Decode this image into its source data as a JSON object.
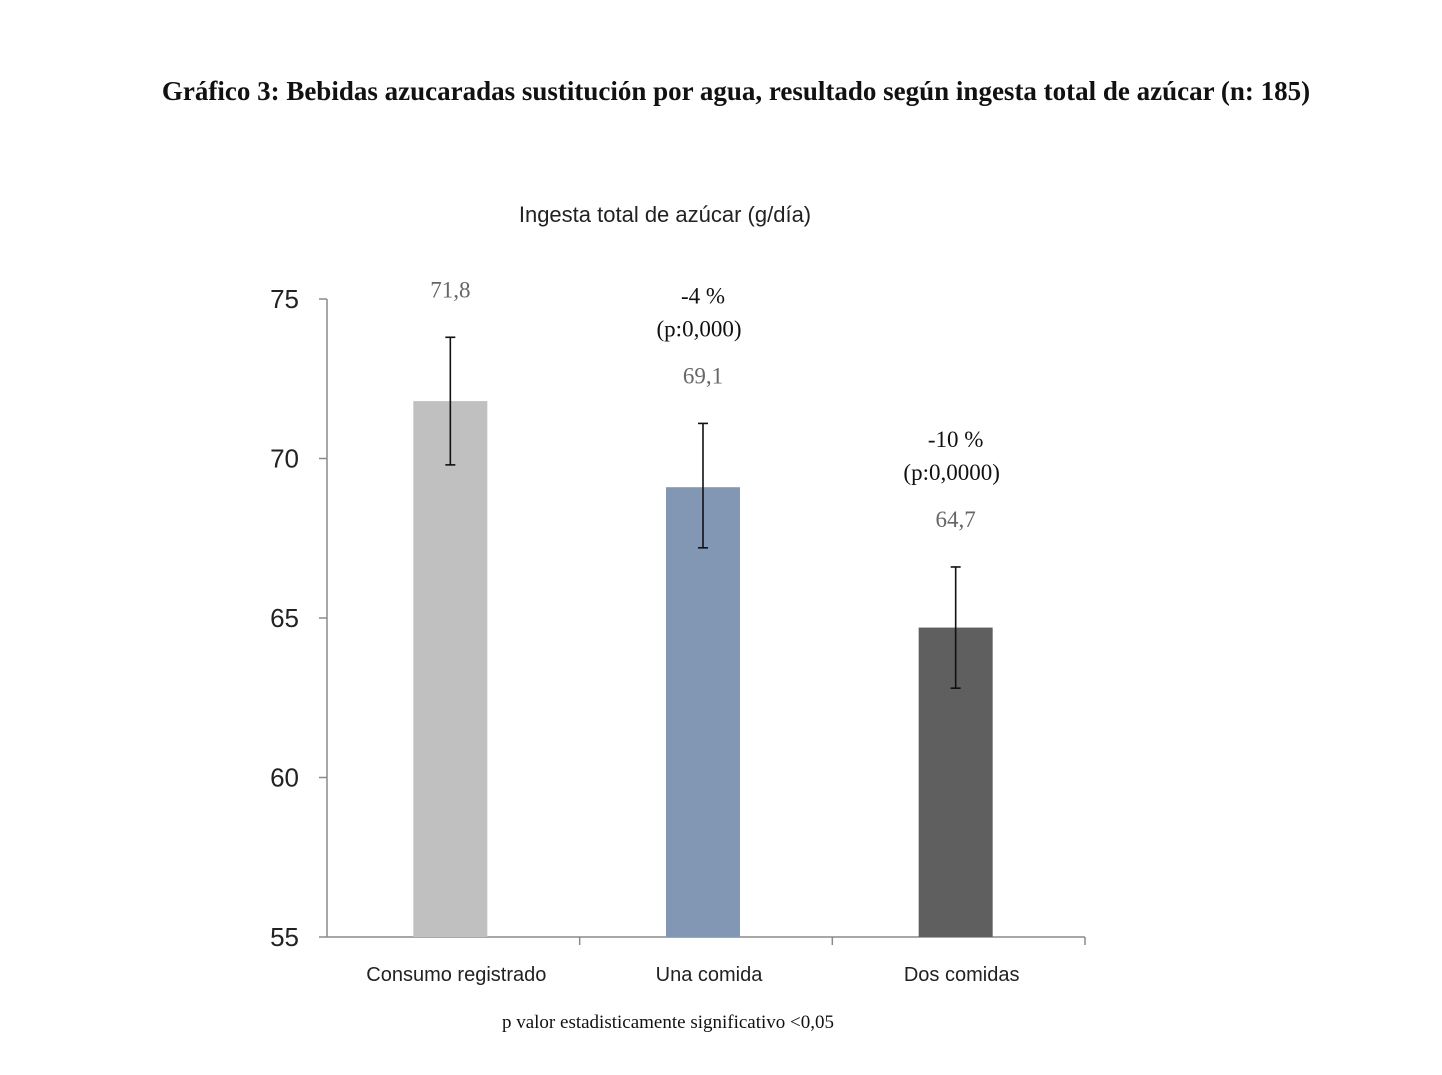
{
  "figure": {
    "title": "Gráfico 3: Bebidas azucaradas sustitución por agua, resultado según ingesta total de azúcar (n: 185)",
    "footnote": "p valor estadisticamente significativo <0,05"
  },
  "chart_data": {
    "type": "bar",
    "title": "Ingesta total de azúcar (g/día)",
    "xlabel": "",
    "ylabel": "",
    "ylim": [
      55,
      75
    ],
    "yticks": [
      "75",
      "70",
      "65",
      "60",
      "55"
    ],
    "grid": false,
    "legend": "none",
    "categories": [
      "Consumo registrado",
      "Una comida",
      "Dos comidas"
    ],
    "values": [
      71.8,
      69.1,
      64.7
    ],
    "value_labels": [
      "71,8",
      "69,1",
      "64,7"
    ],
    "error_high": [
      73.8,
      71.1,
      66.6
    ],
    "error_low": [
      69.8,
      67.2,
      62.8
    ],
    "annotations": [
      {
        "category": "Una comida",
        "change": "-4 %",
        "p": "(p:0,000)"
      },
      {
        "category": "Dos comidas",
        "change": "-10 %",
        "p": "(p:0,0000)"
      }
    ],
    "colors": [
      "#c0c0c0",
      "#8197b4",
      "#5f5f5f"
    ]
  }
}
